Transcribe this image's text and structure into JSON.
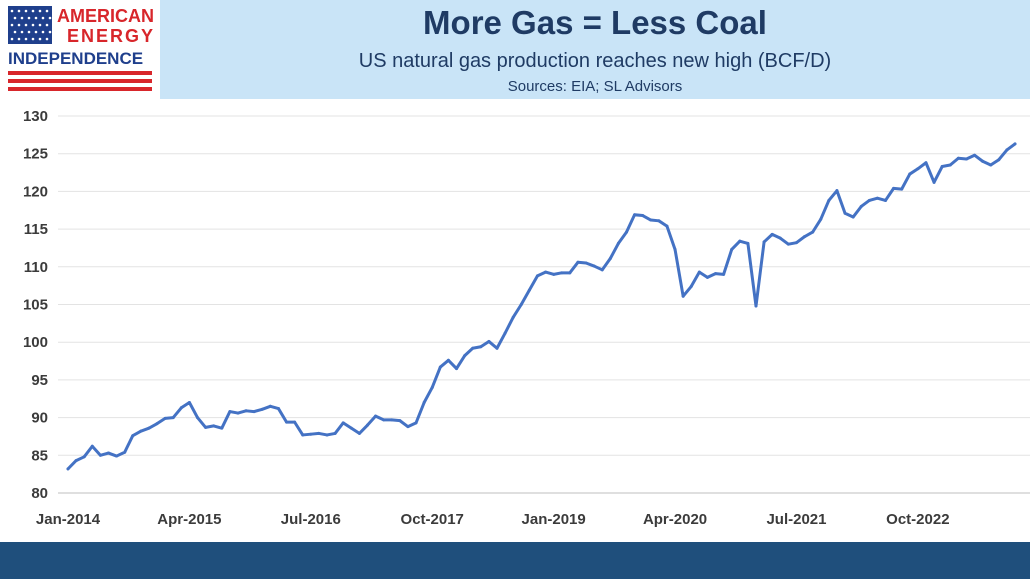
{
  "logo": {
    "line1": "AMERICAN",
    "line2": "ENERGY",
    "line3": "INDEPENDENCE",
    "colors": {
      "flag_blue": "#1f3f8c",
      "stripe_red": "#d8262b",
      "text_red": "#d8262b",
      "text_blue": "#1f3f8c"
    }
  },
  "header": {
    "title": "More Gas = Less Coal",
    "subtitle": "US natural gas production reaches new high (BCF/D)",
    "source": "Sources: EIA; SL Advisors",
    "background": "#c9e4f7",
    "text_color": "#1f3b64"
  },
  "footer": {
    "color": "#1f4f7c"
  },
  "chart_data": {
    "type": "line",
    "title": "More Gas = Less Coal",
    "subtitle": "US natural gas production reaches new high (BCF/D)",
    "xlabel": "",
    "ylabel": "",
    "ylim": [
      80,
      130
    ],
    "yticks": [
      80,
      85,
      90,
      95,
      100,
      105,
      110,
      115,
      120,
      125,
      130
    ],
    "xticks": [
      "Jan-2014",
      "Apr-2015",
      "Jul-2016",
      "Oct-2017",
      "Jan-2019",
      "Apr-2020",
      "Jul-2021",
      "Oct-2022"
    ],
    "xtick_month_index": [
      0,
      15,
      30,
      45,
      60,
      75,
      90,
      105
    ],
    "grid": "horizontal",
    "line_color": "#4472c4",
    "series": [
      {
        "values": [
          83.2,
          84.3,
          84.8,
          86.2,
          85.0,
          85.3,
          84.9,
          85.4,
          87.6,
          88.2,
          88.6,
          89.2,
          89.9,
          90.0,
          91.3,
          92.0,
          90.0,
          88.7,
          88.9,
          88.6,
          90.8,
          90.6,
          90.9,
          90.8,
          91.1,
          91.5,
          91.2,
          89.4,
          89.4,
          87.7,
          87.8,
          87.9,
          87.7,
          87.9,
          89.3,
          88.6,
          87.9,
          89.0,
          90.2,
          89.7,
          89.7,
          89.6,
          88.8,
          89.3,
          92.0,
          94.0,
          96.7,
          97.6,
          96.5,
          98.2,
          99.2,
          99.4,
          100.1,
          99.2,
          101.2,
          103.3,
          105.0,
          106.9,
          108.8,
          109.3,
          109.0,
          109.2,
          109.2,
          110.6,
          110.5,
          110.1,
          109.6,
          111.1,
          113.1,
          114.6,
          116.9,
          116.8,
          116.2,
          116.1,
          115.4,
          112.3,
          106.1,
          107.4,
          109.3,
          108.6,
          109.1,
          109.0,
          112.3,
          113.4,
          113.1,
          104.8,
          113.3,
          114.3,
          113.8,
          113.0,
          113.2,
          114.0,
          114.6,
          116.3,
          118.8,
          120.1,
          117.1,
          116.6,
          118.0,
          118.8,
          119.1,
          118.8,
          120.4,
          120.3,
          122.3,
          123.0,
          123.8,
          121.2,
          123.3,
          123.5,
          124.4,
          124.3,
          124.8,
          124.0,
          123.5,
          124.2,
          125.5,
          126.3
        ]
      }
    ]
  }
}
